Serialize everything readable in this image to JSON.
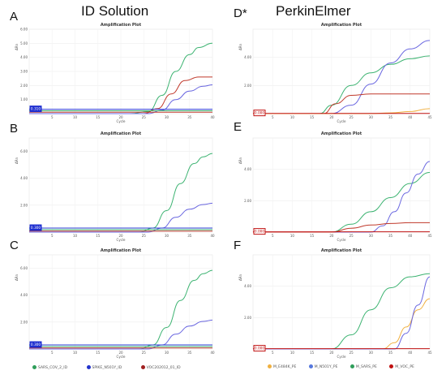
{
  "headers": {
    "left": "ID Solution",
    "right": "PerkinElmer"
  },
  "colors": {
    "green": "#3cb371",
    "blue": "#6a67e0",
    "red": "#c0392b",
    "orange": "#f0b040",
    "thr_blue": "#2b3fd6",
    "thr_red": "#c01010"
  },
  "legend_left": [
    {
      "label": "SARS_COV_2_ID",
      "color": "#2f9e5a"
    },
    {
      "label": "SPIKE_N501Y_ID",
      "color": "#2233cc"
    },
    {
      "label": "VOC202012_01_ID",
      "color": "#a02020"
    }
  ],
  "legend_right": [
    {
      "label": "M_E484K_PE",
      "color": "#f0b040"
    },
    {
      "label": "M_N501Y_PE",
      "color": "#5577dd"
    },
    {
      "label": "M_SARS_PE",
      "color": "#2f9e5a"
    },
    {
      "label": "M_VOC_PE",
      "color": "#c01010"
    }
  ],
  "chart_data": [
    {
      "panel": "A",
      "type": "line",
      "title": "Amplification Plot",
      "xlabel": "Cycle",
      "ylabel": "ΔRn",
      "xlim": [
        0,
        40
      ],
      "ylim": [
        0,
        6
      ],
      "xticks": [
        "5",
        "10",
        "15",
        "20",
        "25",
        "30",
        "35",
        "40"
      ],
      "yticks": [
        "1.00",
        "2.00",
        "3.00",
        "4.00",
        "5.00",
        "6.00"
      ],
      "threshold_label": "0.310",
      "series": [
        {
          "color": "green",
          "x": [
            0,
            22,
            26,
            29,
            32,
            35,
            37,
            40
          ],
          "y": [
            0,
            0,
            0.15,
            1.3,
            3.0,
            4.2,
            4.7,
            5.0
          ]
        },
        {
          "color": "red",
          "x": [
            0,
            25,
            28,
            31,
            34,
            37,
            40
          ],
          "y": [
            0,
            0,
            0.35,
            1.4,
            2.35,
            2.6,
            2.6
          ]
        },
        {
          "color": "blue",
          "x": [
            0,
            26,
            29,
            32,
            35,
            38,
            40
          ],
          "y": [
            0,
            0,
            0.25,
            1.0,
            1.6,
            1.95,
            2.05
          ]
        },
        {
          "color": "thr_blue",
          "x": [
            0,
            40
          ],
          "y": [
            0.31,
            0.31
          ]
        },
        {
          "color": "green",
          "x": [
            0,
            40
          ],
          "y": [
            0.2,
            0.2
          ]
        },
        {
          "color": "red",
          "x": [
            0,
            40
          ],
          "y": [
            0.1,
            0.1
          ]
        }
      ]
    },
    {
      "panel": "B",
      "type": "line",
      "title": "Amplification Plot",
      "xlabel": "Cycle",
      "ylabel": "ΔRn",
      "xlim": [
        0,
        40
      ],
      "ylim": [
        0,
        7
      ],
      "xticks": [
        "5",
        "10",
        "15",
        "20",
        "25",
        "30",
        "35",
        "40"
      ],
      "yticks": [
        "2.00",
        "4.00",
        "6.00"
      ],
      "threshold_label": "0.300",
      "series": [
        {
          "color": "green",
          "x": [
            0,
            24,
            27,
            30,
            33,
            36,
            38,
            40
          ],
          "y": [
            0,
            0,
            0.3,
            1.6,
            3.6,
            5.1,
            5.6,
            5.85
          ]
        },
        {
          "color": "blue",
          "x": [
            0,
            26,
            29,
            32,
            35,
            38,
            40
          ],
          "y": [
            0,
            0,
            0.3,
            1.1,
            1.7,
            2.05,
            2.15
          ]
        },
        {
          "color": "thr_blue",
          "x": [
            0,
            40
          ],
          "y": [
            0.3,
            0.3
          ]
        },
        {
          "color": "green",
          "x": [
            0,
            40
          ],
          "y": [
            0.18,
            0.18
          ]
        },
        {
          "color": "red",
          "x": [
            0,
            40
          ],
          "y": [
            0.08,
            0.08
          ]
        }
      ]
    },
    {
      "panel": "C",
      "type": "line",
      "title": "Amplification Plot",
      "xlabel": "Cycle",
      "ylabel": "ΔRn",
      "xlim": [
        0,
        40
      ],
      "ylim": [
        0,
        7
      ],
      "xticks": [
        "5",
        "10",
        "15",
        "20",
        "25",
        "30",
        "35",
        "40"
      ],
      "yticks": [
        "2.00",
        "4.00",
        "6.00"
      ],
      "threshold_label": "0.300",
      "series": [
        {
          "color": "green",
          "x": [
            0,
            24,
            27,
            30,
            33,
            36,
            38,
            40
          ],
          "y": [
            0,
            0,
            0.3,
            1.6,
            3.6,
            5.1,
            5.6,
            5.85
          ]
        },
        {
          "color": "blue",
          "x": [
            0,
            26,
            29,
            32,
            35,
            38,
            40
          ],
          "y": [
            0,
            0,
            0.3,
            1.1,
            1.7,
            2.05,
            2.15
          ]
        },
        {
          "color": "thr_blue",
          "x": [
            0,
            40
          ],
          "y": [
            0.3,
            0.3
          ]
        },
        {
          "color": "green",
          "x": [
            0,
            40
          ],
          "y": [
            0.18,
            0.18
          ]
        },
        {
          "color": "red",
          "x": [
            0,
            40
          ],
          "y": [
            0.08,
            0.08
          ]
        }
      ]
    },
    {
      "panel": "D*",
      "type": "line",
      "title": "Amplification Plot",
      "xlabel": "Cycle",
      "ylabel": "ΔRn",
      "xlim": [
        0,
        45
      ],
      "ylim": [
        0,
        6
      ],
      "xticks": [
        "5",
        "10",
        "15",
        "20",
        "25",
        "30",
        "35",
        "40",
        "45"
      ],
      "yticks": [
        "2.00",
        "4.00"
      ],
      "threshold_label": "0.000",
      "series": [
        {
          "color": "green",
          "x": [
            0,
            17,
            20,
            25,
            30,
            35,
            40,
            45
          ],
          "y": [
            0,
            0,
            0.6,
            2.0,
            2.9,
            3.5,
            3.9,
            4.1
          ]
        },
        {
          "color": "blue",
          "x": [
            0,
            20,
            25,
            30,
            35,
            40,
            45
          ],
          "y": [
            0,
            0,
            0.6,
            2.1,
            3.6,
            4.6,
            5.2
          ]
        },
        {
          "color": "red",
          "x": [
            0,
            18,
            21,
            25,
            30,
            45
          ],
          "y": [
            0,
            0,
            0.7,
            1.3,
            1.4,
            1.4
          ]
        },
        {
          "color": "orange",
          "x": [
            0,
            30,
            35,
            40,
            45
          ],
          "y": [
            0,
            0,
            0.05,
            0.15,
            0.35
          ]
        },
        {
          "color": "thr_red",
          "x": [
            0,
            45
          ],
          "y": [
            0.02,
            0.02
          ]
        }
      ]
    },
    {
      "panel": "E",
      "type": "line",
      "title": "Amplification Plot",
      "xlabel": "Cycle",
      "ylabel": "ΔRn",
      "xlim": [
        0,
        45
      ],
      "ylim": [
        0,
        6
      ],
      "xticks": [
        "5",
        "10",
        "15",
        "20",
        "25",
        "30",
        "35",
        "40",
        "45"
      ],
      "yticks": [
        "2.00",
        "4.00"
      ],
      "threshold_label": "0.000",
      "series": [
        {
          "color": "green",
          "x": [
            0,
            20,
            25,
            30,
            35,
            40,
            45
          ],
          "y": [
            0,
            0,
            0.5,
            1.3,
            2.2,
            3.1,
            3.8
          ]
        },
        {
          "color": "blue",
          "x": [
            0,
            30,
            33,
            36,
            39,
            42,
            45
          ],
          "y": [
            0,
            0,
            0.4,
            1.3,
            2.5,
            3.7,
            4.5
          ]
        },
        {
          "color": "red",
          "x": [
            0,
            20,
            25,
            30,
            35,
            40,
            45
          ],
          "y": [
            0,
            0,
            0.25,
            0.45,
            0.55,
            0.6,
            0.6
          ]
        },
        {
          "color": "thr_red",
          "x": [
            0,
            45
          ],
          "y": [
            0.02,
            0.02
          ]
        }
      ]
    },
    {
      "panel": "F",
      "type": "line",
      "title": "Amplification Plot",
      "xlabel": "Cycle",
      "ylabel": "ΔRn",
      "xlim": [
        0,
        45
      ],
      "ylim": [
        0,
        6
      ],
      "xticks": [
        "5",
        "10",
        "15",
        "20",
        "25",
        "30",
        "35",
        "40",
        "45"
      ],
      "yticks": [
        "2.00",
        "4.00"
      ],
      "threshold_label": "0.000",
      "series": [
        {
          "color": "green",
          "x": [
            0,
            20,
            25,
            30,
            35,
            40,
            45
          ],
          "y": [
            0,
            0,
            0.9,
            2.5,
            3.9,
            4.6,
            4.8
          ]
        },
        {
          "color": "orange",
          "x": [
            0,
            33,
            36,
            39,
            42,
            45
          ],
          "y": [
            0,
            0,
            0.4,
            1.4,
            2.5,
            3.2
          ]
        },
        {
          "color": "blue",
          "x": [
            0,
            36,
            39,
            42,
            45
          ],
          "y": [
            0,
            0,
            1.0,
            2.8,
            4.6
          ]
        },
        {
          "color": "thr_red",
          "x": [
            0,
            45
          ],
          "y": [
            0.02,
            0.02
          ]
        }
      ]
    }
  ]
}
